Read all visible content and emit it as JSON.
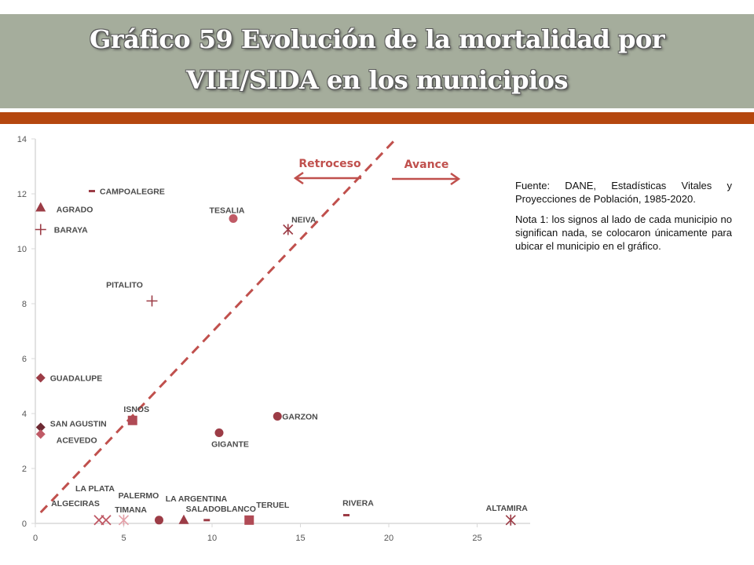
{
  "title": "Gráfico 59 Evolución de la mortalidad por VIH/SIDA en los municipios",
  "source_note": "Fuente: DANE, Estadísticas Vitales y Proyecciones de Población, 1985-2020.",
  "note_1": "Nota 1: los signos al lado de cada municipio no significan nada, se colocaron únicamente para ubicar el municipio en el gráfico.",
  "colors": {
    "title_bg": "#a5ad9c",
    "accent_bar": "#b5470f",
    "marker": "#9c3c46",
    "marker_light": "#c05a66",
    "axis": "#d9d9d9"
  },
  "chart_data": {
    "type": "scatter",
    "xlim": [
      0,
      28
    ],
    "ylim": [
      0,
      14
    ],
    "x_ticks": [
      0,
      5,
      10,
      15,
      20,
      25
    ],
    "y_ticks": [
      0,
      2,
      4,
      6,
      8,
      10,
      12,
      14
    ],
    "grid": false,
    "reference_line": {
      "from": [
        0.3,
        0.4
      ],
      "to": [
        20.4,
        14
      ]
    },
    "arrows": [
      {
        "label": "Retroceso",
        "direction": "left"
      },
      {
        "label": "Avance",
        "direction": "right"
      }
    ],
    "points": [
      {
        "label": "CAMPOALEGRE",
        "x": 3.2,
        "y": 12.1,
        "marker": "dash"
      },
      {
        "label": "AGRADO",
        "x": 0.3,
        "y": 11.5,
        "marker": "triangle"
      },
      {
        "label": "BARAYA",
        "x": 0.3,
        "y": 10.7,
        "marker": "plus"
      },
      {
        "label": "TESALIA",
        "x": 11.2,
        "y": 11.1,
        "marker": "circle-light"
      },
      {
        "label": "NEIVA",
        "x": 14.3,
        "y": 10.7,
        "marker": "asterisk"
      },
      {
        "label": "PITALITO",
        "x": 6.6,
        "y": 8.1,
        "marker": "plus"
      },
      {
        "label": "GUADALUPE",
        "x": 0.3,
        "y": 5.3,
        "marker": "diamond"
      },
      {
        "label": "ISNOS",
        "x": 5.5,
        "y": 3.75,
        "marker": "square"
      },
      {
        "label": "GARZON",
        "x": 13.7,
        "y": 3.9,
        "marker": "circle"
      },
      {
        "label": "SAN AGUSTIN",
        "x": 0.3,
        "y": 3.5,
        "marker": "diamond-dark"
      },
      {
        "label": "ACEVEDO",
        "x": 0.3,
        "y": 3.25,
        "marker": "diamond-light"
      },
      {
        "label": "GIGANTE",
        "x": 10.4,
        "y": 3.3,
        "marker": "circle"
      },
      {
        "label": "LA PLATA",
        "x": 4.0,
        "y": 0.12,
        "marker": "x"
      },
      {
        "label": "ALGECIRAS",
        "x": 3.6,
        "y": 0.12,
        "marker": "x"
      },
      {
        "label": "PALERMO",
        "x": 7.0,
        "y": 0.12,
        "marker": "circle"
      },
      {
        "label": "TIMANA",
        "x": 5.0,
        "y": 0.12,
        "marker": "asterisk-light"
      },
      {
        "label": "LA ARGENTINA",
        "x": 8.4,
        "y": 0.12,
        "marker": "triangle"
      },
      {
        "label": "SALADOBLANCO",
        "x": 9.7,
        "y": 0.12,
        "marker": "dash"
      },
      {
        "label": "TERUEL",
        "x": 12.1,
        "y": 0.12,
        "marker": "square"
      },
      {
        "label": "RIVERA",
        "x": 17.6,
        "y": 0.3,
        "marker": "dash"
      },
      {
        "label": "ALTAMIRA",
        "x": 26.9,
        "y": 0.12,
        "marker": "asterisk"
      }
    ]
  }
}
